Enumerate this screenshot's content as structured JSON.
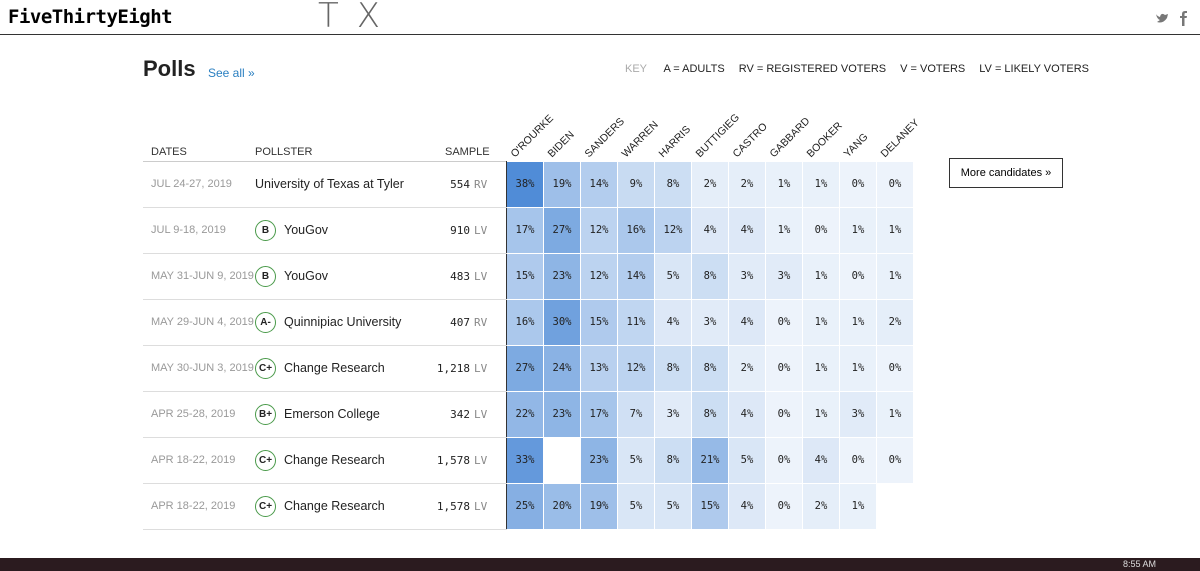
{
  "header": {
    "brand": "FiveThirtyEight",
    "annotation": "TX"
  },
  "polls": {
    "title": "Polls",
    "see_all": "See all »",
    "key": {
      "label": "KEY",
      "items": [
        "A = ADULTS",
        "RV = REGISTERED VOTERS",
        "V = VOTERS",
        "LV = LIKELY VOTERS"
      ]
    },
    "more_button": "More candidates »",
    "table": {
      "columns": {
        "dates": "DATES",
        "pollster": "POLLSTER",
        "sample": "SAMPLE"
      },
      "candidates": [
        "O'ROURKE",
        "BIDEN",
        "SANDERS",
        "WARREN",
        "HARRIS",
        "BUTTIGIEG",
        "CASTRO",
        "GABBARD",
        "BOOKER",
        "YANG",
        "DELANEY"
      ],
      "rows": [
        {
          "dates": "JUL 24-27, 2019",
          "grade": null,
          "pollster": "University of Texas at Tyler",
          "sample": "554",
          "population": "RV",
          "values": [
            "38%",
            "19%",
            "14%",
            "9%",
            "8%",
            "2%",
            "2%",
            "1%",
            "1%",
            "0%",
            "0%"
          ]
        },
        {
          "dates": "JUL 9-18, 2019",
          "grade": "B",
          "pollster": "YouGov",
          "sample": "910",
          "population": "LV",
          "values": [
            "17%",
            "27%",
            "12%",
            "16%",
            "12%",
            "4%",
            "4%",
            "1%",
            "0%",
            "1%",
            "1%"
          ]
        },
        {
          "dates": "MAY 31-JUN 9, 2019",
          "grade": "B",
          "pollster": "YouGov",
          "sample": "483",
          "population": "LV",
          "values": [
            "15%",
            "23%",
            "12%",
            "14%",
            "5%",
            "8%",
            "3%",
            "3%",
            "1%",
            "0%",
            "1%"
          ]
        },
        {
          "dates": "MAY 29-JUN 4, 2019",
          "grade": "A-",
          "pollster": "Quinnipiac University",
          "sample": "407",
          "population": "RV",
          "values": [
            "16%",
            "30%",
            "15%",
            "11%",
            "4%",
            "3%",
            "4%",
            "0%",
            "1%",
            "1%",
            "2%"
          ]
        },
        {
          "dates": "MAY 30-JUN 3, 2019",
          "grade": "C+",
          "pollster": "Change Research",
          "sample": "1,218",
          "population": "LV",
          "values": [
            "27%",
            "24%",
            "13%",
            "12%",
            "8%",
            "8%",
            "2%",
            "0%",
            "1%",
            "1%",
            "0%"
          ]
        },
        {
          "dates": "APR 25-28, 2019",
          "grade": "B+",
          "pollster": "Emerson College",
          "sample": "342",
          "population": "LV",
          "values": [
            "22%",
            "23%",
            "17%",
            "7%",
            "3%",
            "8%",
            "4%",
            "0%",
            "1%",
            "3%",
            "1%"
          ]
        },
        {
          "dates": "APR 18-22, 2019",
          "grade": "C+",
          "pollster": "Change Research",
          "sample": "1,578",
          "population": "LV",
          "values": [
            "33%",
            null,
            "23%",
            "5%",
            "8%",
            "21%",
            "5%",
            "0%",
            "4%",
            "0%",
            "0%"
          ]
        },
        {
          "dates": "APR 18-22, 2019",
          "grade": "C+",
          "pollster": "Change Research",
          "sample": "1,578",
          "population": "LV",
          "values": [
            "25%",
            "20%",
            "19%",
            "5%",
            "5%",
            "15%",
            "4%",
            "0%",
            "2%",
            "1%",
            null
          ]
        }
      ]
    }
  },
  "taskbar": {
    "time": "8:55 AM"
  }
}
